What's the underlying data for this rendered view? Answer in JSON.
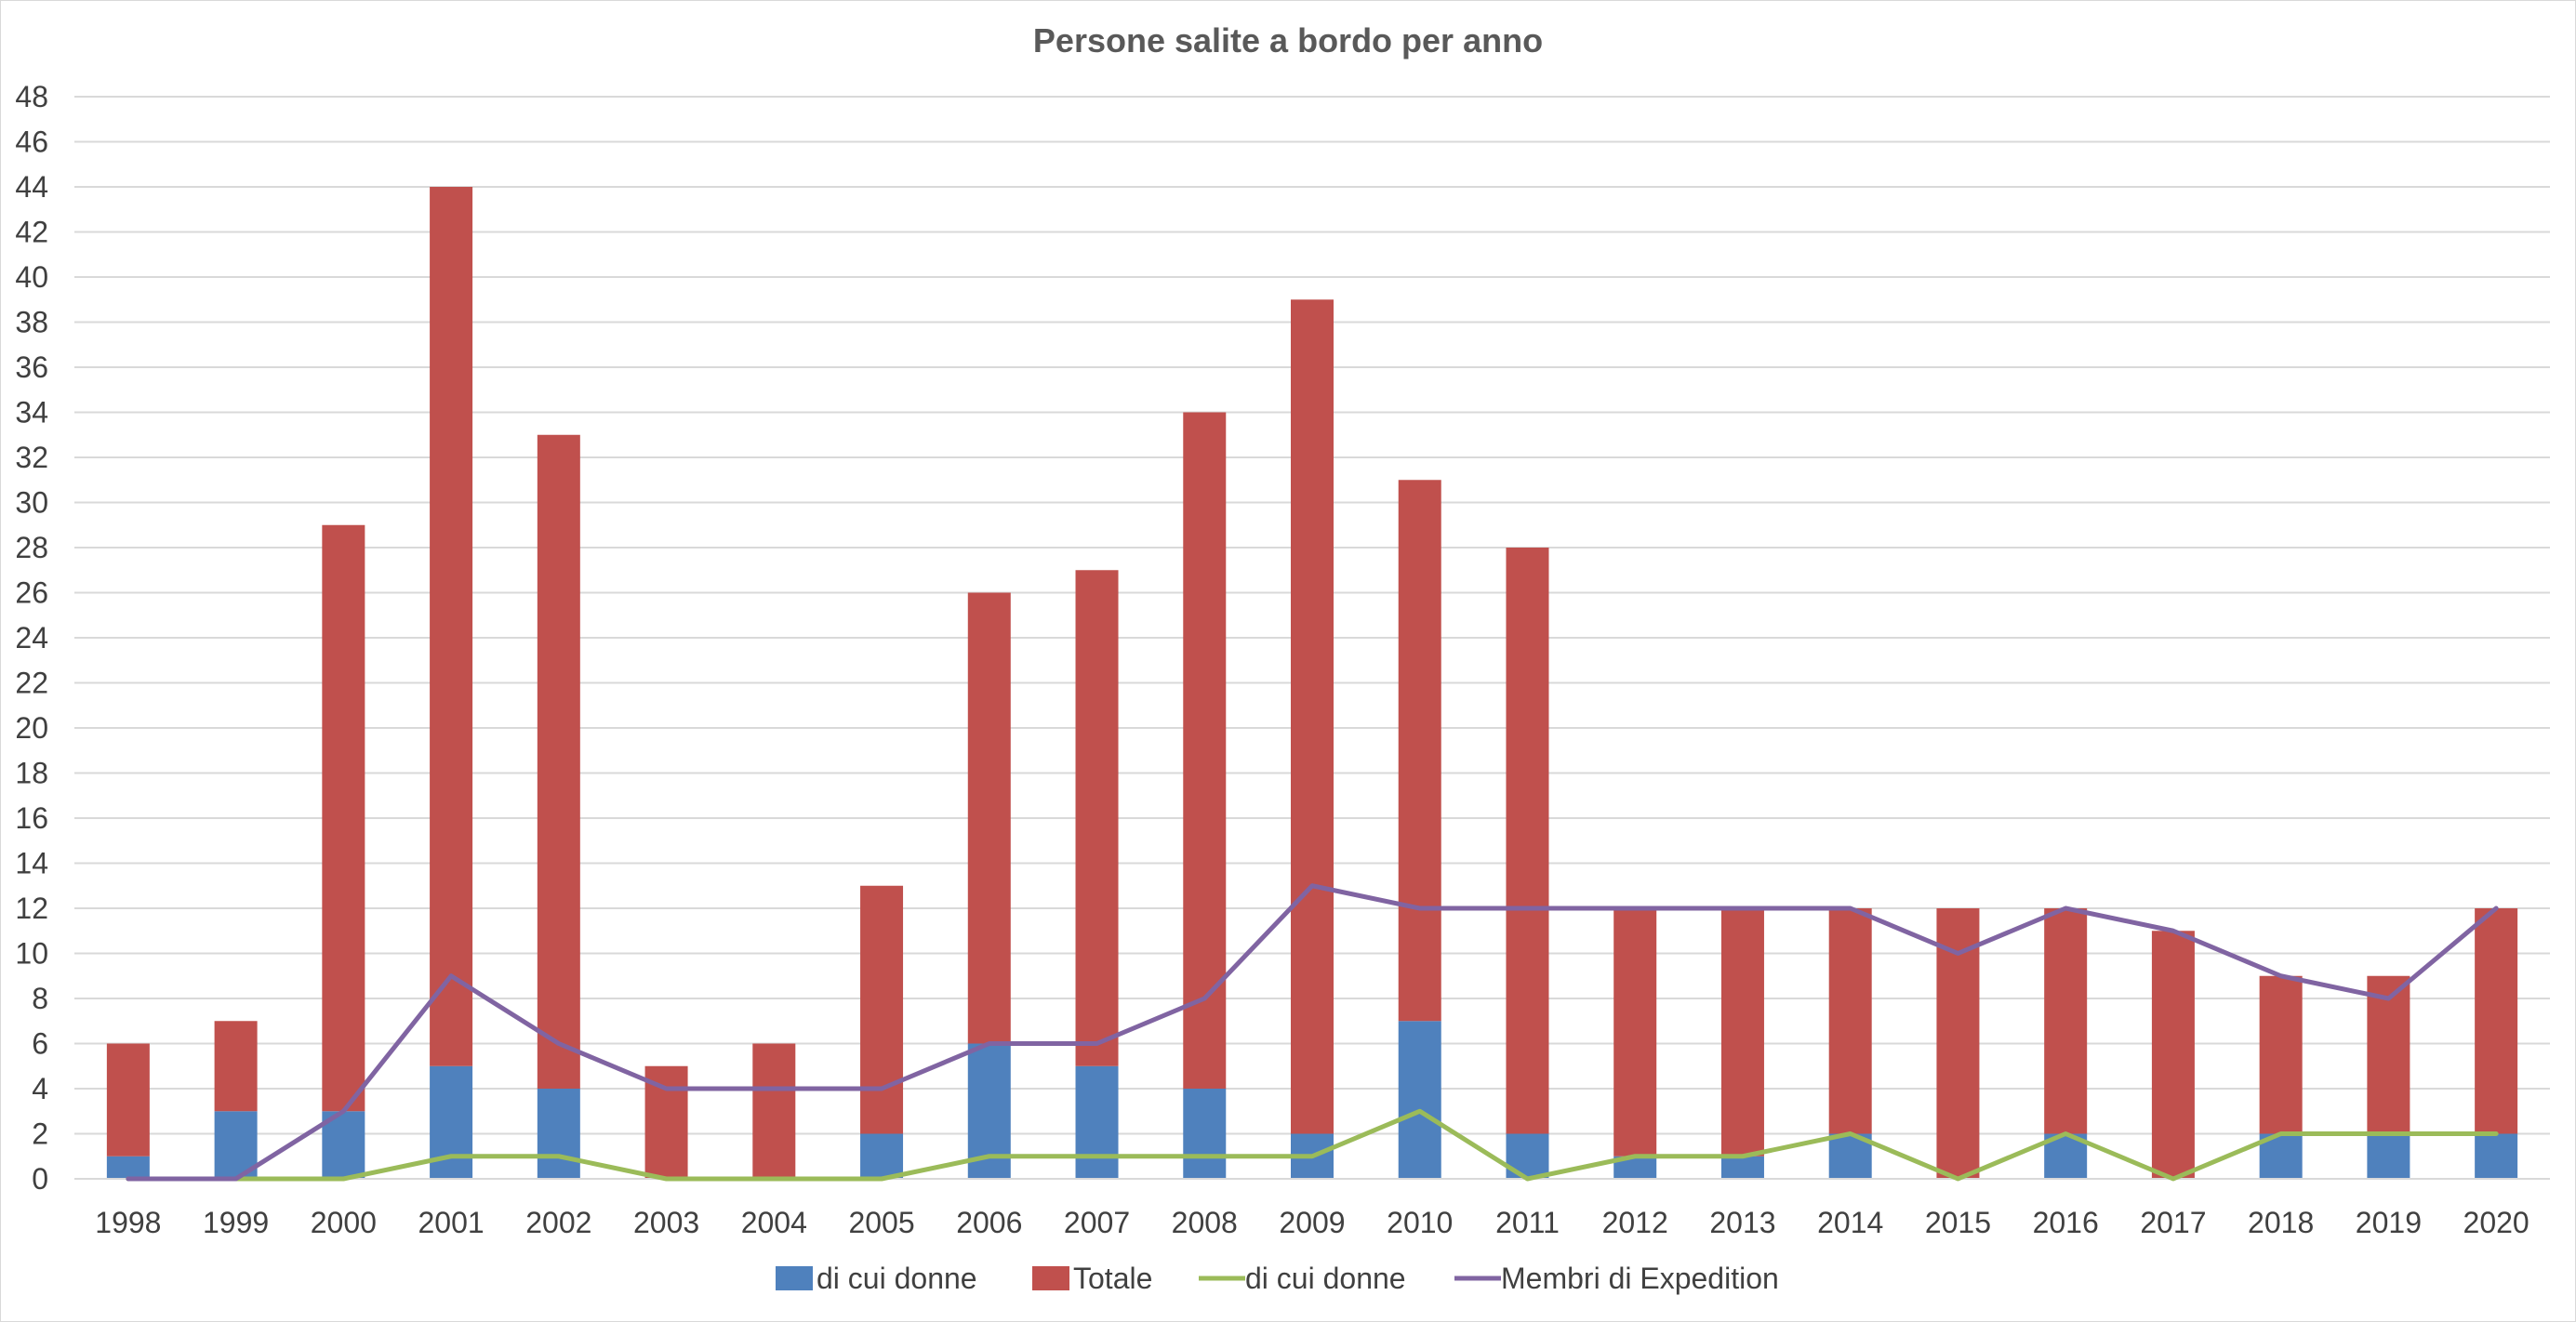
{
  "chart_data": {
    "type": "bar",
    "stacked": true,
    "title": "Persone salite a bordo per anno",
    "xlabel": "",
    "ylabel": "",
    "ylim": [
      0,
      48
    ],
    "y_ticks": [
      "0",
      "2",
      "4",
      "6",
      "8",
      "10",
      "12",
      "14",
      "16",
      "18",
      "20",
      "22",
      "24",
      "26",
      "28",
      "30",
      "32",
      "34",
      "36",
      "38",
      "40",
      "42",
      "44",
      "46",
      "48"
    ],
    "grid": true,
    "legend_position": "bottom",
    "categories": [
      "1998",
      "1999",
      "2000",
      "2001",
      "2002",
      "2003",
      "2004",
      "2005",
      "2006",
      "2007",
      "2008",
      "2009",
      "2010",
      "2011",
      "2012",
      "2013",
      "2014",
      "2015",
      "2016",
      "2017",
      "2018",
      "2019",
      "2020"
    ],
    "series": [
      {
        "name": "di cui donne",
        "kind": "bar",
        "color": "#4f81bd",
        "values": [
          1,
          3,
          3,
          5,
          4,
          0,
          0,
          2,
          6,
          5,
          4,
          2,
          7,
          2,
          1,
          1,
          2,
          0,
          2,
          0,
          2,
          2,
          2
        ]
      },
      {
        "name": "Totale",
        "kind": "bar",
        "color": "#c0504d",
        "values": [
          6,
          7,
          29,
          44,
          33,
          5,
          6,
          13,
          26,
          27,
          34,
          39,
          31,
          28,
          12,
          12,
          12,
          12,
          12,
          11,
          9,
          9,
          12
        ]
      },
      {
        "name": "di cui donne",
        "kind": "line",
        "color": "#9bbb59",
        "values": [
          0,
          0,
          0,
          1,
          1,
          0,
          0,
          0,
          1,
          1,
          1,
          1,
          3,
          0,
          1,
          1,
          2,
          0,
          2,
          0,
          2,
          2,
          2
        ]
      },
      {
        "name": "Membri di Expedition",
        "kind": "line",
        "color": "#8064a2",
        "values": [
          0,
          0,
          3,
          9,
          6,
          4,
          4,
          4,
          6,
          6,
          8,
          13,
          12,
          12,
          12,
          12,
          12,
          10,
          12,
          11,
          9,
          8,
          12
        ]
      }
    ]
  }
}
